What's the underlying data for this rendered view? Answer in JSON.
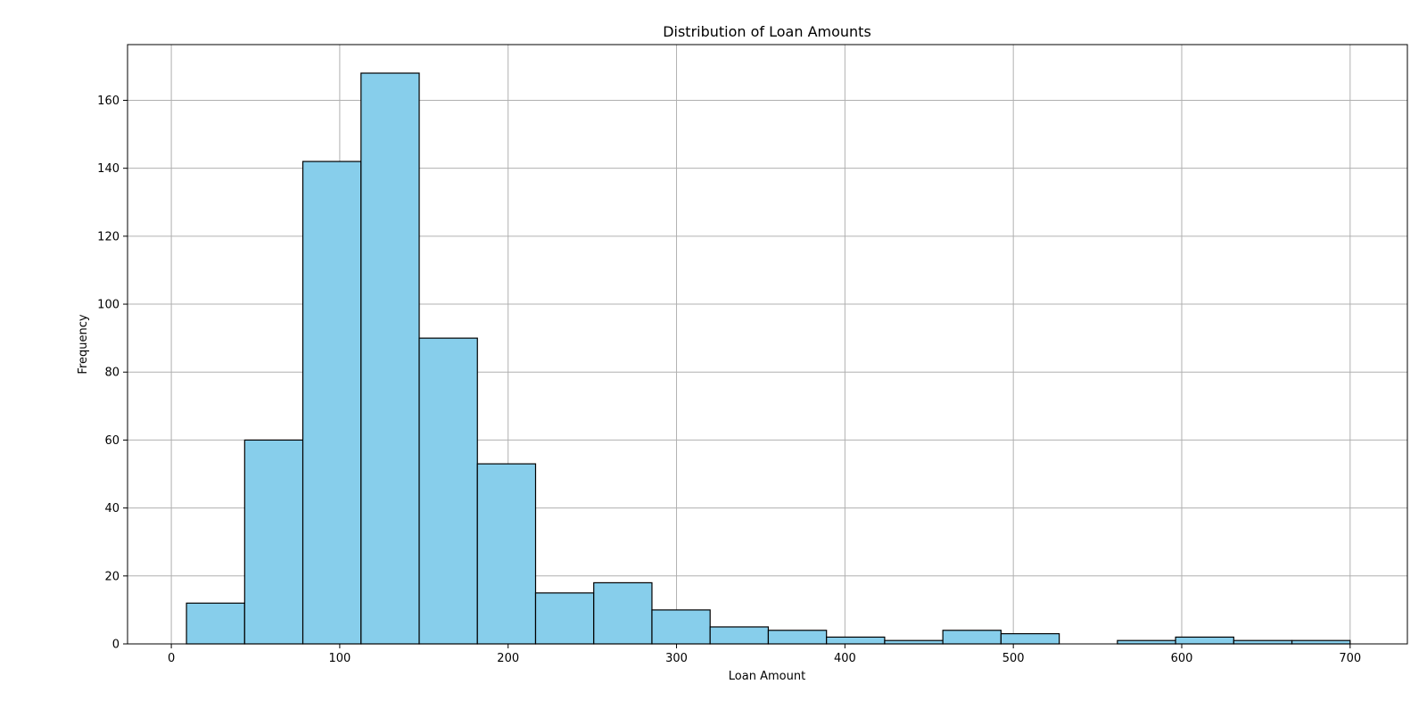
{
  "chart_data": {
    "type": "bar",
    "subtype": "histogram",
    "title": "Distribution of Loan Amounts",
    "xlabel": "Loan Amount",
    "ylabel": "Frequency",
    "xlim": [
      -26,
      734
    ],
    "ylim": [
      0,
      176.4
    ],
    "xticks": [
      0,
      100,
      200,
      300,
      400,
      500,
      600,
      700
    ],
    "yticks": [
      0,
      20,
      40,
      60,
      80,
      100,
      120,
      140,
      160
    ],
    "grid": true,
    "bar_color": "#87CEEB",
    "edge_color": "#000000",
    "bin_start": 9,
    "bin_end": 700,
    "bin_count": 20,
    "counts": [
      12,
      60,
      142,
      168,
      90,
      53,
      15,
      18,
      10,
      5,
      4,
      2,
      1,
      4,
      3,
      0,
      1,
      2,
      1,
      1
    ]
  }
}
